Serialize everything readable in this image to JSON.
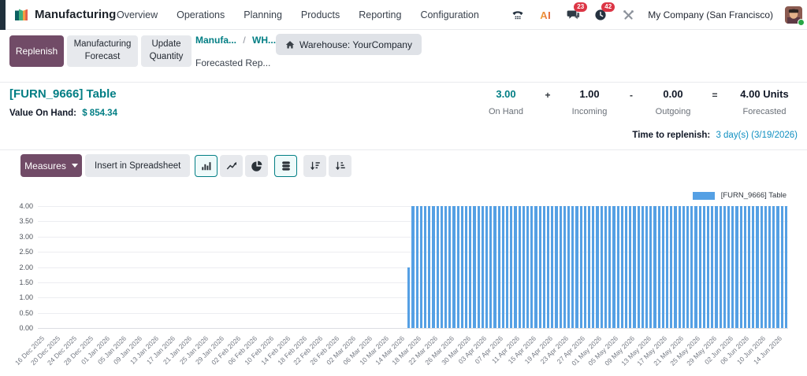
{
  "nav": {
    "app_name": "Manufacturing",
    "menu": [
      "Overview",
      "Operations",
      "Planning",
      "Products",
      "Reporting",
      "Configuration"
    ],
    "systray": {
      "messages_count": "23",
      "activities_count": "42",
      "company": "My Company (San Francisco)"
    }
  },
  "control_panel": {
    "replenish_label": "Replenish",
    "manufacturing_forecast_label": "Manufacturing Forecast",
    "update_quantity_label": "Update Quantity",
    "breadcrumb": {
      "level1": "Manufa...",
      "separator": "/",
      "level2": "WH...",
      "current": "Forecasted Rep..."
    },
    "warehouse_badge": "Warehouse: YourCompany"
  },
  "product": {
    "title": "[FURN_9666] Table",
    "value_on_hand_label": "Value On Hand:",
    "value_on_hand": "$ 854.34",
    "stats": {
      "on_hand": {
        "value": "3.00",
        "label": "On Hand"
      },
      "plus": "+",
      "incoming": {
        "value": "1.00",
        "label": "Incoming"
      },
      "minus": "-",
      "outgoing": {
        "value": "0.00",
        "label": "Outgoing"
      },
      "equals": "=",
      "forecasted": {
        "value": "4.00 Units",
        "label": "Forecasted"
      }
    },
    "time_to_replenish_label": "Time to replenish:",
    "time_to_replenish_value": "3 day(s) (3/19/2026)"
  },
  "toolbar": {
    "measures_label": "Measures",
    "insert_spreadsheet_label": "Insert in Spreadsheet",
    "icons": [
      "bar-chart",
      "line-chart",
      "pie-chart",
      "stacked",
      "sort-desc",
      "sort-asc"
    ],
    "active_icons": [
      "bar-chart",
      "stacked"
    ]
  },
  "colors": {
    "accent_teal": "#017e84",
    "primary_purple": "#714B67",
    "bar_blue": "#55a0e4",
    "badge_red": "#dc3545",
    "link_blue": "#0f8fc1"
  },
  "chart_data": {
    "type": "bar",
    "title": "",
    "legend_position": "top-right",
    "grid": true,
    "ylim": [
      0,
      4
    ],
    "y_ticks": [
      "0.00",
      "0.50",
      "1.00",
      "1.50",
      "2.00",
      "2.50",
      "3.00",
      "3.50",
      "4.00"
    ],
    "x_start": "16 Dec 2025",
    "x_end": "16 Jun 2026",
    "num_days": 183,
    "x_tick_every_days": 4,
    "x_tick_labels": [
      "16 Dec 2025",
      "20 Dec 2025",
      "24 Dec 2025",
      "28 Dec 2025",
      "01 Jan 2026",
      "05 Jan 2026",
      "09 Jan 2026",
      "13 Jan 2026",
      "17 Jan 2026",
      "21 Jan 2026",
      "25 Jan 2026",
      "29 Jan 2026",
      "02 Feb 2026",
      "06 Feb 2026",
      "10 Feb 2026",
      "14 Feb 2026",
      "18 Feb 2026",
      "22 Feb 2026",
      "26 Feb 2026",
      "02 Mar 2026",
      "06 Mar 2026",
      "10 Mar 2026",
      "14 Mar 2026",
      "18 Mar 2026",
      "22 Mar 2026",
      "26 Mar 2026",
      "30 Mar 2026",
      "03 Apr 2026",
      "07 Apr 2026",
      "11 Apr 2026",
      "15 Apr 2026",
      "19 Apr 2026",
      "23 Apr 2026",
      "27 Apr 2026",
      "01 May 2026",
      "05 May 2026",
      "09 May 2026",
      "13 May 2026",
      "17 May 2026",
      "21 May 2026",
      "25 May 2026",
      "29 May 2026",
      "02 Jun 2026",
      "06 Jun 2026",
      "10 Jun 2026",
      "14 Jun 2026"
    ],
    "series": [
      {
        "name": "[FURN_9666] Table",
        "color": "#55a0e4",
        "unit": "Units",
        "segments": [
          {
            "from_day": 0,
            "to_day": 89,
            "value": 0,
            "from_date": "16 Dec 2025",
            "to_date": "15 Mar 2026"
          },
          {
            "from_day": 90,
            "to_day": 90,
            "value": 2,
            "from_date": "16 Mar 2026",
            "to_date": "16 Mar 2026"
          },
          {
            "from_day": 91,
            "to_day": 182,
            "value": 4,
            "from_date": "17 Mar 2026",
            "to_date": "16 Jun 2026"
          }
        ]
      }
    ]
  }
}
